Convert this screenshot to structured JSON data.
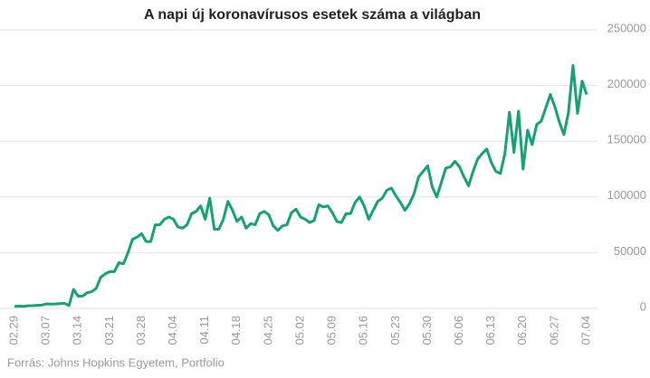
{
  "chart_data": {
    "type": "line",
    "title": "A napi új koronavírusos esetek száma a világban",
    "source": "Forrás: Johns Hopkins Egyetem, Portfolio",
    "categories": [
      "02.29",
      null,
      null,
      null,
      null,
      null,
      null,
      "03.07",
      null,
      null,
      null,
      null,
      null,
      null,
      "03.14",
      null,
      null,
      null,
      null,
      null,
      null,
      "03.21",
      null,
      null,
      null,
      null,
      null,
      null,
      "03.28",
      null,
      null,
      null,
      null,
      null,
      null,
      "04.04",
      null,
      null,
      null,
      null,
      null,
      null,
      "04.11",
      null,
      null,
      null,
      null,
      null,
      null,
      "04.18",
      null,
      null,
      null,
      null,
      null,
      null,
      "04.25",
      null,
      null,
      null,
      null,
      null,
      null,
      "05.02",
      null,
      null,
      null,
      null,
      null,
      null,
      "05.09",
      null,
      null,
      null,
      null,
      null,
      null,
      "05.16",
      null,
      null,
      null,
      null,
      null,
      null,
      "05.23",
      null,
      null,
      null,
      null,
      null,
      null,
      "05.30",
      null,
      null,
      null,
      null,
      null,
      null,
      "06.06",
      null,
      null,
      null,
      null,
      null,
      null,
      "06.13",
      null,
      null,
      null,
      null,
      null,
      null,
      "06.20",
      null,
      null,
      null,
      null,
      null,
      null,
      "06.27",
      null,
      null,
      null,
      null,
      null,
      null,
      "07.04"
    ],
    "values": [
      1800,
      2000,
      1800,
      2300,
      2400,
      2700,
      2900,
      4000,
      3900,
      4000,
      4300,
      4600,
      2500,
      17000,
      11000,
      11000,
      14000,
      15000,
      18000,
      28000,
      31000,
      33000,
      33000,
      41000,
      40000,
      50000,
      62000,
      64000,
      67000,
      60000,
      60000,
      75000,
      75000,
      80000,
      82000,
      80000,
      73000,
      72000,
      75000,
      85000,
      87000,
      92000,
      80000,
      99000,
      71000,
      71000,
      80000,
      96000,
      88000,
      78000,
      82000,
      72000,
      76000,
      75000,
      85000,
      87000,
      84000,
      74000,
      70000,
      74000,
      75000,
      86000,
      89000,
      82000,
      80000,
      77000,
      79000,
      93000,
      91000,
      92000,
      86000,
      78000,
      77000,
      85000,
      85000,
      95000,
      100000,
      92000,
      80000,
      88000,
      96000,
      99000,
      106000,
      108000,
      101000,
      95000,
      88000,
      94000,
      103000,
      118000,
      123000,
      128000,
      109000,
      100000,
      113000,
      126000,
      127000,
      132000,
      127000,
      118000,
      110000,
      123000,
      134000,
      139000,
      143000,
      131000,
      123000,
      121000,
      139000,
      176000,
      140000,
      177000,
      125000,
      160000,
      147000,
      165000,
      168000,
      180000,
      192000,
      181000,
      167000,
      156000,
      176000,
      218000,
      175000,
      204000,
      192000
    ],
    "color": "#16a076",
    "ylim": [
      0,
      250000
    ],
    "yticks": [
      0,
      50000,
      100000,
      150000,
      200000,
      250000
    ],
    "grid": true
  }
}
